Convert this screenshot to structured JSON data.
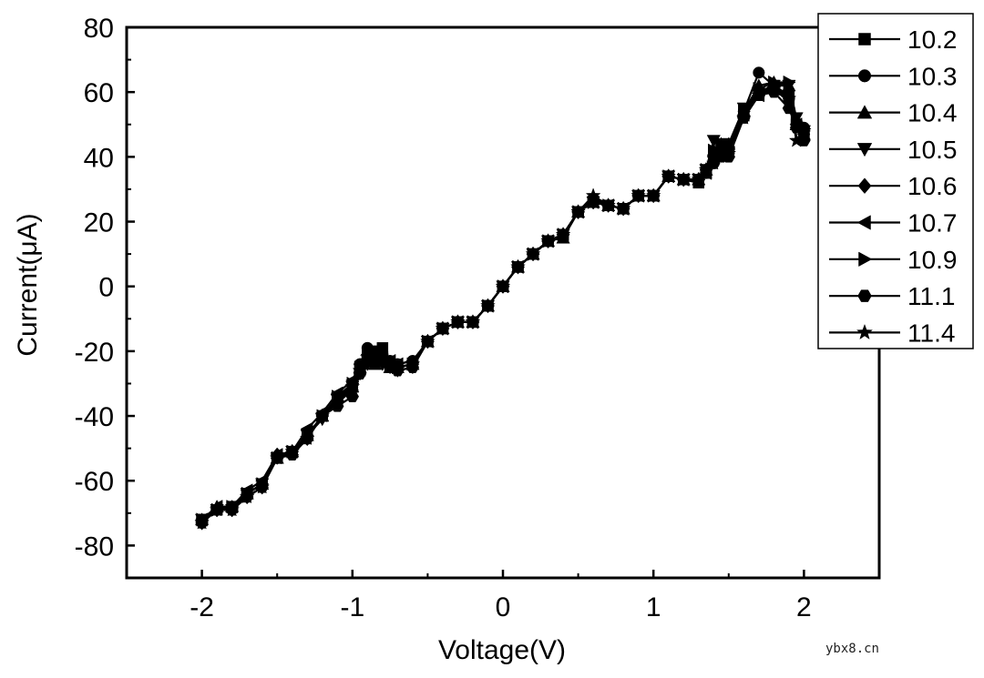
{
  "chart_data": {
    "type": "line",
    "title": "",
    "xlabel": "Voltage(V)",
    "ylabel": "Current(μA)",
    "xlim": [
      -2.5,
      2.5
    ],
    "ylim": [
      -90,
      80
    ],
    "xticks": [
      -2,
      -1,
      0,
      1,
      2
    ],
    "yticks": [
      80,
      60,
      40,
      20,
      0,
      -20,
      -40,
      -60,
      -80
    ],
    "xtick_labels": [
      "-2",
      "-1",
      "0",
      "1",
      "2"
    ],
    "ytick_labels": [
      "80",
      "60",
      "40",
      "20",
      "0",
      "-20",
      "-40",
      "-60",
      "-80"
    ],
    "legend_position": "top-right-outside",
    "x": [
      -2.0,
      -1.9,
      -1.8,
      -1.7,
      -1.6,
      -1.5,
      -1.4,
      -1.3,
      -1.2,
      -1.1,
      -1.0,
      -0.95,
      -0.9,
      -0.85,
      -0.8,
      -0.75,
      -0.7,
      -0.6,
      -0.5,
      -0.4,
      -0.3,
      -0.2,
      -0.1,
      0.0,
      0.1,
      0.2,
      0.3,
      0.4,
      0.5,
      0.6,
      0.7,
      0.8,
      0.9,
      1.0,
      1.1,
      1.2,
      1.3,
      1.35,
      1.4,
      1.45,
      1.5,
      1.6,
      1.7,
      1.8,
      1.9,
      1.95,
      2.0
    ],
    "series": [
      {
        "name": "10.2",
        "marker": "square",
        "values": [
          -72,
          -69,
          -68,
          -64,
          -61,
          -53,
          -51,
          -46,
          -40,
          -35,
          -31,
          -26,
          -22,
          -20,
          -19,
          -24,
          -25,
          -24,
          -17,
          -13,
          -11,
          -11,
          -6,
          0,
          6,
          10,
          14,
          16,
          23,
          26,
          25,
          24,
          28,
          28,
          34,
          33,
          32,
          35,
          40,
          42,
          42,
          53,
          60,
          62,
          59,
          50,
          48
        ]
      },
      {
        "name": "10.3",
        "marker": "circle",
        "values": [
          -72,
          -69,
          -68,
          -64,
          -61,
          -53,
          -51,
          -46,
          -40,
          -35,
          -30,
          -24,
          -19,
          -22,
          -21,
          -23,
          -24,
          -23,
          -17,
          -13,
          -11,
          -11,
          -6,
          0,
          6,
          10,
          14,
          16,
          23,
          27,
          25,
          24,
          28,
          28,
          34,
          33,
          33,
          35,
          38,
          42,
          42,
          54,
          66,
          62,
          58,
          50,
          49
        ]
      },
      {
        "name": "10.4",
        "marker": "triangle-up",
        "values": [
          -72,
          -68,
          -68,
          -64,
          -61,
          -53,
          -51,
          -46,
          -40,
          -34,
          -31,
          -25,
          -21,
          -24,
          -22,
          -25,
          -25,
          -24,
          -17,
          -13,
          -11,
          -11,
          -6,
          0,
          6,
          10,
          14,
          15,
          23,
          26,
          25,
          24,
          28,
          28,
          34,
          33,
          33,
          36,
          42,
          44,
          44,
          54,
          62,
          63,
          62,
          50,
          47
        ]
      },
      {
        "name": "10.5",
        "marker": "triangle-down",
        "values": [
          -72,
          -69,
          -69,
          -64,
          -61,
          -53,
          -51,
          -46,
          -41,
          -35,
          -31,
          -27,
          -24,
          -23,
          -24,
          -25,
          -26,
          -25,
          -17,
          -13,
          -11,
          -11,
          -6,
          0,
          6,
          10,
          14,
          16,
          23,
          26,
          25,
          24,
          28,
          28,
          34,
          33,
          33,
          36,
          45,
          44,
          44,
          55,
          60,
          62,
          62,
          52,
          48
        ]
      },
      {
        "name": "10.6",
        "marker": "diamond",
        "values": [
          -73,
          -69,
          -69,
          -65,
          -62,
          -52,
          -51,
          -47,
          -40,
          -36,
          -32,
          -26,
          -22,
          -22,
          -23,
          -24,
          -25,
          -24,
          -17,
          -13,
          -11,
          -11,
          -6,
          0,
          6,
          10,
          14,
          16,
          23,
          26,
          25,
          24,
          28,
          28,
          34,
          33,
          33,
          36,
          39,
          41,
          41,
          53,
          60,
          61,
          58,
          50,
          47
        ]
      },
      {
        "name": "10.7",
        "marker": "triangle-left",
        "values": [
          -72,
          -68,
          -68,
          -63,
          -60,
          -52,
          -51,
          -44,
          -39,
          -33,
          -29,
          -24,
          -21,
          -22,
          -22,
          -23,
          -24,
          -23,
          -17,
          -13,
          -11,
          -11,
          -6,
          0,
          6,
          10,
          14,
          16,
          23,
          26,
          25,
          24,
          28,
          28,
          34,
          33,
          33,
          35,
          40,
          42,
          42,
          53,
          59,
          61,
          57,
          50,
          47
        ]
      },
      {
        "name": "10.9",
        "marker": "triangle-right",
        "values": [
          -72,
          -69,
          -68,
          -64,
          -61,
          -53,
          -51,
          -46,
          -40,
          -34,
          -30,
          -25,
          -21,
          -22,
          -22,
          -24,
          -25,
          -24,
          -17,
          -13,
          -11,
          -11,
          -6,
          0,
          6,
          10,
          14,
          16,
          23,
          26,
          25,
          24,
          28,
          28,
          34,
          33,
          33,
          36,
          42,
          43,
          43,
          54,
          61,
          63,
          63,
          51,
          48
        ]
      },
      {
        "name": "11.1",
        "marker": "hexagon",
        "values": [
          -73,
          -69,
          -69,
          -65,
          -62,
          -53,
          -52,
          -47,
          -40,
          -37,
          -34,
          -27,
          -23,
          -22,
          -23,
          -24,
          -26,
          -25,
          -17,
          -13,
          -11,
          -11,
          -6,
          0,
          6,
          10,
          14,
          16,
          23,
          26,
          25,
          24,
          28,
          28,
          34,
          33,
          33,
          36,
          38,
          40,
          40,
          52,
          59,
          60,
          55,
          49,
          45
        ]
      },
      {
        "name": "11.4",
        "marker": "star",
        "values": [
          -73,
          -69,
          -69,
          -65,
          -62,
          -53,
          -51,
          -47,
          -40,
          -36,
          -31,
          -26,
          -22,
          -22,
          -23,
          -24,
          -25,
          -24,
          -17,
          -13,
          -11,
          -11,
          -6,
          0,
          6,
          10,
          14,
          16,
          23,
          28,
          25,
          24,
          28,
          28,
          34,
          33,
          33,
          36,
          38,
          41,
          41,
          52,
          59,
          61,
          58,
          45,
          48
        ]
      }
    ]
  },
  "watermark": "ybx8.cn"
}
